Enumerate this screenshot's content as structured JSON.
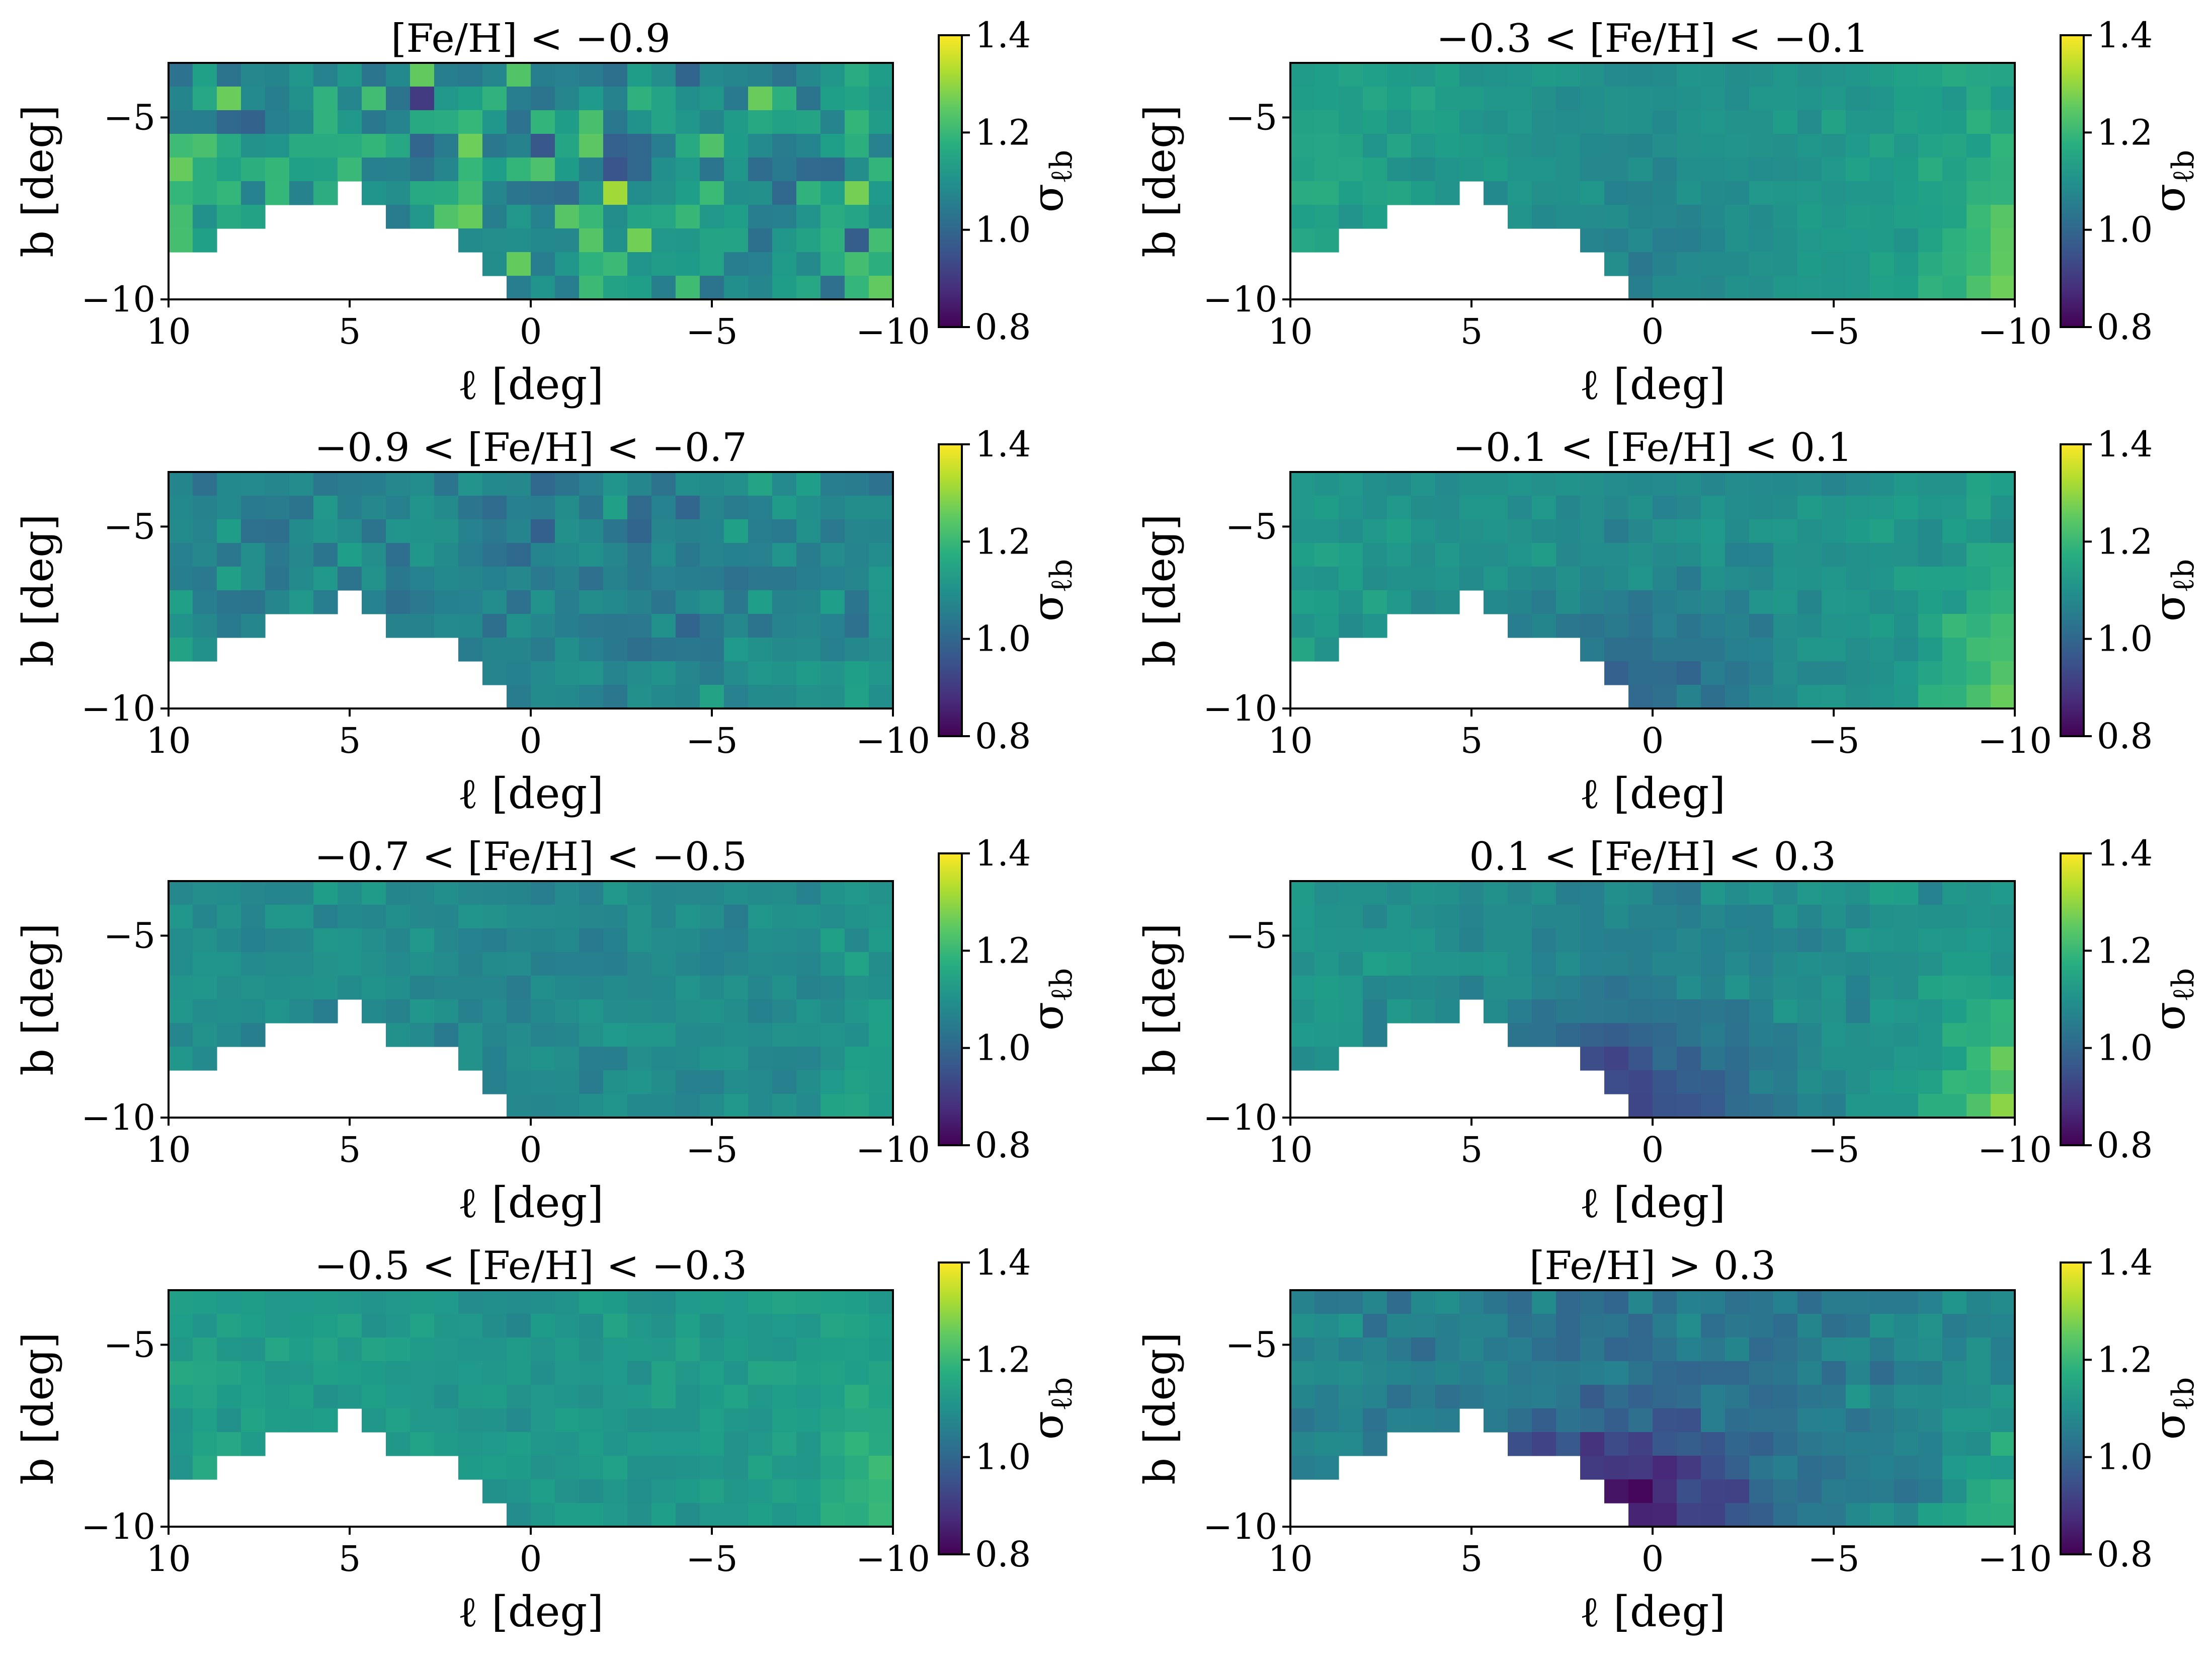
{
  "figure": {
    "colormap": "viridis",
    "colorbar": {
      "label": "σ_ℓb",
      "min": 0.8,
      "max": 1.4,
      "ticks": [
        "0.8",
        "1.0",
        "1.2",
        "1.4"
      ]
    }
  },
  "chart_data": [
    {
      "type": "heatmap",
      "title": "[Fe/H] < −0.9",
      "xlabel": "ℓ [deg]",
      "ylabel": "b [deg]",
      "xlim": [
        10,
        -10
      ],
      "ylim": [
        -10,
        -3.5
      ],
      "xticks": [
        "10",
        "5",
        "0",
        "−5",
        "−10"
      ],
      "yticks": [
        "−5",
        "−10"
      ],
      "nx": 30,
      "ny": 10,
      "center": 1.1,
      "noise": 0.22,
      "gradient": 0.02,
      "bulge": 0.0,
      "edge": 0.05,
      "seed": 11
    },
    {
      "type": "heatmap",
      "title": "−0.3 < [Fe/H] < −0.1",
      "xlabel": "ℓ [deg]",
      "ylabel": "b [deg]",
      "xlim": [
        10,
        -10
      ],
      "ylim": [
        -10,
        -3.5
      ],
      "xticks": [
        "10",
        "5",
        "0",
        "−5",
        "−10"
      ],
      "yticks": [
        "−5",
        "−10"
      ],
      "nx": 30,
      "ny": 10,
      "center": 1.09,
      "noise": 0.04,
      "gradient": 0.06,
      "bulge": 0.03,
      "edge": 0.14,
      "seed": 12
    },
    {
      "type": "heatmap",
      "title": "−0.9 < [Fe/H] < −0.7",
      "xlabel": "ℓ [deg]",
      "ylabel": "b [deg]",
      "xlim": [
        10,
        -10
      ],
      "ylim": [
        -10,
        -3.5
      ],
      "xticks": [
        "10",
        "5",
        "0",
        "−5",
        "−10"
      ],
      "yticks": [
        "−5",
        "−10"
      ],
      "nx": 30,
      "ny": 10,
      "center": 1.06,
      "noise": 0.09,
      "gradient": 0.02,
      "bulge": 0.0,
      "edge": 0.06,
      "seed": 13
    },
    {
      "type": "heatmap",
      "title": "−0.1 < [Fe/H] < 0.1",
      "xlabel": "ℓ [deg]",
      "ylabel": "b [deg]",
      "xlim": [
        10,
        -10
      ],
      "ylim": [
        -10,
        -3.5
      ],
      "xticks": [
        "10",
        "5",
        "0",
        "−5",
        "−10"
      ],
      "yticks": [
        "−5",
        "−10"
      ],
      "nx": 30,
      "ny": 10,
      "center": 1.08,
      "noise": 0.05,
      "gradient": 0.05,
      "bulge": 0.08,
      "edge": 0.16,
      "seed": 14
    },
    {
      "type": "heatmap",
      "title": "−0.7 < [Fe/H] < −0.5",
      "xlabel": "ℓ [deg]",
      "ylabel": "b [deg]",
      "xlim": [
        10,
        -10
      ],
      "ylim": [
        -10,
        -3.5
      ],
      "xticks": [
        "10",
        "5",
        "0",
        "−5",
        "−10"
      ],
      "yticks": [
        "−5",
        "−10"
      ],
      "nx": 30,
      "ny": 10,
      "center": 1.08,
      "noise": 0.05,
      "gradient": 0.02,
      "bulge": 0.0,
      "edge": 0.06,
      "seed": 15
    },
    {
      "type": "heatmap",
      "title": "0.1 < [Fe/H] < 0.3",
      "xlabel": "ℓ [deg]",
      "ylabel": "b [deg]",
      "xlim": [
        10,
        -10
      ],
      "ylim": [
        -10,
        -3.5
      ],
      "xticks": [
        "10",
        "5",
        "0",
        "−5",
        "−10"
      ],
      "yticks": [
        "−5",
        "−10"
      ],
      "nx": 30,
      "ny": 10,
      "center": 1.07,
      "noise": 0.05,
      "gradient": 0.05,
      "bulge": 0.16,
      "edge": 0.18,
      "seed": 16
    },
    {
      "type": "heatmap",
      "title": "−0.5 < [Fe/H] < −0.3",
      "xlabel": "ℓ [deg]",
      "ylabel": "b [deg]",
      "xlim": [
        10,
        -10
      ],
      "ylim": [
        -10,
        -3.5
      ],
      "xticks": [
        "10",
        "5",
        "0",
        "−5",
        "−10"
      ],
      "yticks": [
        "−5",
        "−10"
      ],
      "nx": 30,
      "ny": 10,
      "center": 1.11,
      "noise": 0.04,
      "gradient": 0.03,
      "bulge": 0.0,
      "edge": 0.07,
      "seed": 17
    },
    {
      "type": "heatmap",
      "title": "[Fe/H] > 0.3",
      "xlabel": "ℓ [deg]",
      "ylabel": "b [deg]",
      "xlim": [
        10,
        -10
      ],
      "ylim": [
        -10,
        -3.5
      ],
      "xticks": [
        "10",
        "5",
        "0",
        "−5",
        "−10"
      ],
      "yticks": [
        "−5",
        "−10"
      ],
      "nx": 30,
      "ny": 10,
      "center": 1.03,
      "noise": 0.07,
      "gradient": 0.05,
      "bulge": 0.2,
      "edge": 0.14,
      "seed": 18
    }
  ]
}
